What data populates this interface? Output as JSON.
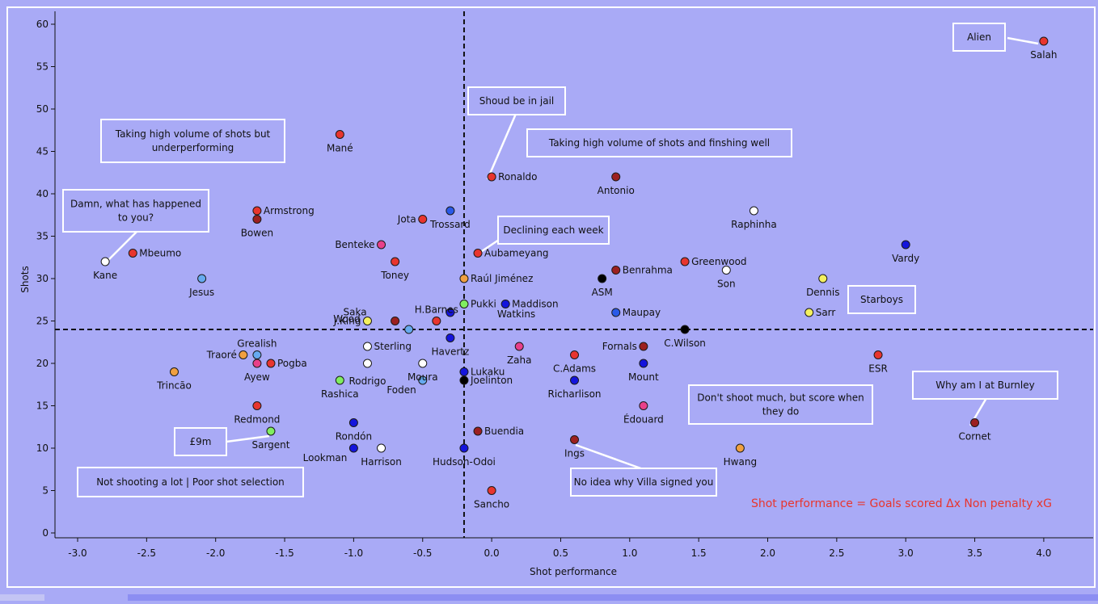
{
  "colors": {
    "background": "#a9aaf6",
    "red": "#e8352e",
    "darkred": "#9c2020",
    "blue": "#1414dc",
    "royal": "#2a5ae8",
    "lightblue": "#66aaf0",
    "pink": "#e8408a",
    "orange": "#f0a040",
    "yellow": "#f4f060",
    "green": "#80ee60",
    "white": "#ffffff",
    "black": "#000000"
  },
  "chart_data": {
    "type": "scatter",
    "title": "",
    "xlabel": "Shot performance",
    "ylabel": "Shots",
    "xlim": [
      -3.15,
      4.35
    ],
    "ylim": [
      -0.5,
      62
    ],
    "xticks": [
      "-3.0",
      "-2.5",
      "-2.0",
      "-1.5",
      "-1.0",
      "-0.5",
      "0.0",
      "0.5",
      "1.0",
      "1.5",
      "2.0",
      "2.5",
      "3.0",
      "3.5",
      "4.0"
    ],
    "yticks": [
      "0",
      "5",
      "10",
      "15",
      "20",
      "25",
      "30",
      "35",
      "40",
      "45",
      "50",
      "55",
      "60"
    ],
    "reference_lines": {
      "x": -0.2,
      "y": 24
    },
    "grid": false,
    "legend": "none",
    "formula": "Shot performance = Goals scored Δx Non penalty xG",
    "points": [
      {
        "name": "Salah",
        "x": 4.0,
        "y": 58,
        "color": "red",
        "label_pos": "below"
      },
      {
        "name": "Mané",
        "x": -1.1,
        "y": 47,
        "color": "red",
        "label_pos": "below"
      },
      {
        "name": "Ronaldo",
        "x": 0.0,
        "y": 42,
        "color": "red",
        "label_pos": "right"
      },
      {
        "name": "Antonio",
        "x": 0.9,
        "y": 42,
        "color": "darkred",
        "label_pos": "below"
      },
      {
        "name": "Raphinha",
        "x": 1.9,
        "y": 38,
        "color": "white",
        "label_pos": "below"
      },
      {
        "name": "Armstrong",
        "x": -1.7,
        "y": 38,
        "color": "red",
        "label_pos": "right"
      },
      {
        "name": "Bowen",
        "x": -1.7,
        "y": 37,
        "color": "darkred",
        "label_pos": "below"
      },
      {
        "name": "Jota",
        "x": -0.5,
        "y": 37,
        "color": "red",
        "label_pos": "left"
      },
      {
        "name": "Trossard",
        "x": -0.3,
        "y": 38,
        "color": "royal",
        "label_pos": "below"
      },
      {
        "name": "Vardy",
        "x": 3.0,
        "y": 34,
        "color": "blue",
        "label_pos": "below"
      },
      {
        "name": "Benteke",
        "x": -0.8,
        "y": 34,
        "color": "pink",
        "label_pos": "left"
      },
      {
        "name": "Mbeumo",
        "x": -2.6,
        "y": 33,
        "color": "red",
        "label_pos": "right"
      },
      {
        "name": "Kane",
        "x": -2.8,
        "y": 32,
        "color": "white",
        "label_pos": "below"
      },
      {
        "name": "Aubameyang",
        "x": -0.1,
        "y": 33,
        "color": "red",
        "label_pos": "right"
      },
      {
        "name": "Toney",
        "x": -0.7,
        "y": 32,
        "color": "red",
        "label_pos": "below"
      },
      {
        "name": "Greenwood",
        "x": 1.4,
        "y": 32,
        "color": "red",
        "label_pos": "right"
      },
      {
        "name": "Benrahma",
        "x": 0.9,
        "y": 31,
        "color": "darkred",
        "label_pos": "right"
      },
      {
        "name": "Son",
        "x": 1.7,
        "y": 31,
        "color": "white",
        "label_pos": "below"
      },
      {
        "name": "Jesus",
        "x": -2.1,
        "y": 30,
        "color": "lightblue",
        "label_pos": "below"
      },
      {
        "name": "Raúl Jiménez",
        "x": -0.2,
        "y": 30,
        "color": "orange",
        "label_pos": "right"
      },
      {
        "name": "ASM",
        "x": 0.8,
        "y": 30,
        "color": "black",
        "label_pos": "below"
      },
      {
        "name": "Dennis",
        "x": 2.4,
        "y": 30,
        "color": "yellow",
        "label_pos": "below"
      },
      {
        "name": "Pukki",
        "x": -0.2,
        "y": 27,
        "color": "green",
        "label_pos": "right"
      },
      {
        "name": "Maddison",
        "x": 0.1,
        "y": 27,
        "color": "blue",
        "label_pos": "right"
      },
      {
        "name": "Watkins",
        "x": -0.3,
        "y": 26,
        "color": "blue",
        "label_pos": "farright"
      },
      {
        "name": "H.Barnes",
        "x": -0.4,
        "y": 25,
        "color": "red",
        "label_pos": "above"
      },
      {
        "name": "Saka",
        "x": -0.7,
        "y": 25,
        "color": "darkred",
        "label_pos": "custom"
      },
      {
        "name": "Wood",
        "x": -0.6,
        "y": 24,
        "color": "lightblue",
        "label_pos": "custom"
      },
      {
        "name": "J.King",
        "x": -0.9,
        "y": 25,
        "color": "yellow",
        "label_pos": "left"
      },
      {
        "name": "Maupay",
        "x": 0.9,
        "y": 26,
        "color": "royal",
        "label_pos": "right"
      },
      {
        "name": "Sarr",
        "x": 2.3,
        "y": 26,
        "color": "yellow",
        "label_pos": "right"
      },
      {
        "name": "C.Wilson",
        "x": 1.4,
        "y": 24,
        "color": "black",
        "label_pos": "below"
      },
      {
        "name": "Havertz",
        "x": -0.3,
        "y": 23,
        "color": "blue",
        "label_pos": "below"
      },
      {
        "name": "Sterling",
        "x": -0.9,
        "y": 22,
        "color": "white",
        "label_pos": "right"
      },
      {
        "name": "Fornals",
        "x": 1.1,
        "y": 22,
        "color": "darkred",
        "label_pos": "left"
      },
      {
        "name": "Zaha",
        "x": 0.2,
        "y": 22,
        "color": "pink",
        "label_pos": "below"
      },
      {
        "name": "Grealish",
        "x": -1.7,
        "y": 21,
        "color": "lightblue",
        "label_pos": "above"
      },
      {
        "name": "Traoré",
        "x": -1.8,
        "y": 21,
        "color": "orange",
        "label_pos": "left"
      },
      {
        "name": "Rodrigo",
        "x": -0.9,
        "y": 20,
        "color": "white",
        "label_pos": "below-custom"
      },
      {
        "name": "C.Adams",
        "x": 0.6,
        "y": 21,
        "color": "red",
        "label_pos": "below"
      },
      {
        "name": "ESR",
        "x": 2.8,
        "y": 21,
        "color": "red",
        "label_pos": "below"
      },
      {
        "name": "Pogba",
        "x": -1.6,
        "y": 20,
        "color": "red",
        "label_pos": "right"
      },
      {
        "name": "Ayew",
        "x": -1.7,
        "y": 20,
        "color": "pink",
        "label_pos": "below"
      },
      {
        "name": "Moura",
        "x": -0.5,
        "y": 20,
        "color": "white",
        "label_pos": "below"
      },
      {
        "name": "Mount",
        "x": 1.1,
        "y": 20,
        "color": "blue",
        "label_pos": "below"
      },
      {
        "name": "Lukaku",
        "x": -0.2,
        "y": 19,
        "color": "blue",
        "label_pos": "right"
      },
      {
        "name": "Trincão",
        "x": -2.3,
        "y": 19,
        "color": "orange",
        "label_pos": "below"
      },
      {
        "name": "Rashica",
        "x": -1.1,
        "y": 18,
        "color": "green",
        "label_pos": "below"
      },
      {
        "name": "Foden",
        "x": -0.5,
        "y": 18,
        "color": "lightblue",
        "label_pos": "left-low"
      },
      {
        "name": "Joelinton",
        "x": -0.2,
        "y": 18,
        "color": "black",
        "label_pos": "right"
      },
      {
        "name": "Richarlison",
        "x": 0.6,
        "y": 18,
        "color": "blue",
        "label_pos": "below"
      },
      {
        "name": "Redmond",
        "x": -1.7,
        "y": 15,
        "color": "red",
        "label_pos": "below"
      },
      {
        "name": "Édouard",
        "x": 1.1,
        "y": 15,
        "color": "pink",
        "label_pos": "below"
      },
      {
        "name": "Rondón",
        "x": -1.0,
        "y": 13,
        "color": "blue",
        "label_pos": "below"
      },
      {
        "name": "Cornet",
        "x": 3.5,
        "y": 13,
        "color": "darkred",
        "label_pos": "below"
      },
      {
        "name": "Sargent",
        "x": -1.6,
        "y": 12,
        "color": "green",
        "label_pos": "below"
      },
      {
        "name": "Buendia",
        "x": -0.1,
        "y": 12,
        "color": "darkred",
        "label_pos": "right"
      },
      {
        "name": "Ings",
        "x": 0.6,
        "y": 11,
        "color": "darkred",
        "label_pos": "below"
      },
      {
        "name": "Lookman",
        "x": -1.0,
        "y": 10,
        "color": "blue",
        "label_pos": "left-low"
      },
      {
        "name": "Harrison",
        "x": -0.8,
        "y": 10,
        "color": "white",
        "label_pos": "below"
      },
      {
        "name": "Hudson-Odoi",
        "x": -0.2,
        "y": 10,
        "color": "blue",
        "label_pos": "below"
      },
      {
        "name": "Hwang",
        "x": 1.8,
        "y": 10,
        "color": "orange",
        "label_pos": "below"
      },
      {
        "name": "Sancho",
        "x": 0.0,
        "y": 5,
        "color": "red",
        "label_pos": "below"
      }
    ],
    "annotations": [
      {
        "id": "alien",
        "lines": [
          "Alien"
        ]
      },
      {
        "id": "jail",
        "lines": [
          "Shoud be in jail"
        ]
      },
      {
        "id": "high-under",
        "lines": [
          "Taking high volume of shots but",
          "underperforming"
        ]
      },
      {
        "id": "high-well",
        "lines": [
          "Taking high volume of shots and finshing well"
        ]
      },
      {
        "id": "damn",
        "lines": [
          "Damn, what has happened",
          "to you?"
        ]
      },
      {
        "id": "declining",
        "lines": [
          "Declining each week"
        ]
      },
      {
        "id": "starboys",
        "lines": [
          "Starboys"
        ]
      },
      {
        "id": "burnley",
        "lines": [
          "Why am I at Burnley"
        ]
      },
      {
        "id": "dont-shoot",
        "lines": [
          "Don't shoot much, but score when",
          "they do"
        ]
      },
      {
        "id": "9m",
        "lines": [
          "£9m"
        ]
      },
      {
        "id": "villa",
        "lines": [
          "No idea why Villa signed you"
        ]
      },
      {
        "id": "not-shooting",
        "lines": [
          "Not shooting a lot | Poor shot selection"
        ]
      }
    ]
  }
}
